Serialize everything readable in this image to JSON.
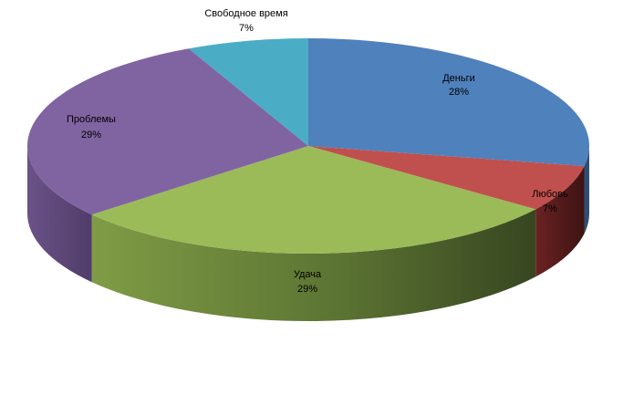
{
  "chart_data": {
    "type": "pie",
    "title": "",
    "variant": "3d-pie",
    "legend": "none",
    "slices": [
      {
        "label": "Деньги",
        "value": 28,
        "value_label": "28%",
        "color": "#4f81bd",
        "side_color": "#2f4e75"
      },
      {
        "label": "Любовь",
        "value": 7,
        "value_label": "7%",
        "color": "#c0504d",
        "side_color": "#5a2020"
      },
      {
        "label": "Удача",
        "value": 29,
        "value_label": "29%",
        "color": "#9bbb59",
        "side_color": "#4b5e2a"
      },
      {
        "label": "Проблемы",
        "value": 29,
        "value_label": "29%",
        "color": "#8064a2",
        "side_color": "#4e3a66"
      },
      {
        "label": "Свободное время",
        "value": 7,
        "value_label": "7%",
        "color": "#4bacc6",
        "side_color": "#2a6a7c"
      }
    ]
  }
}
